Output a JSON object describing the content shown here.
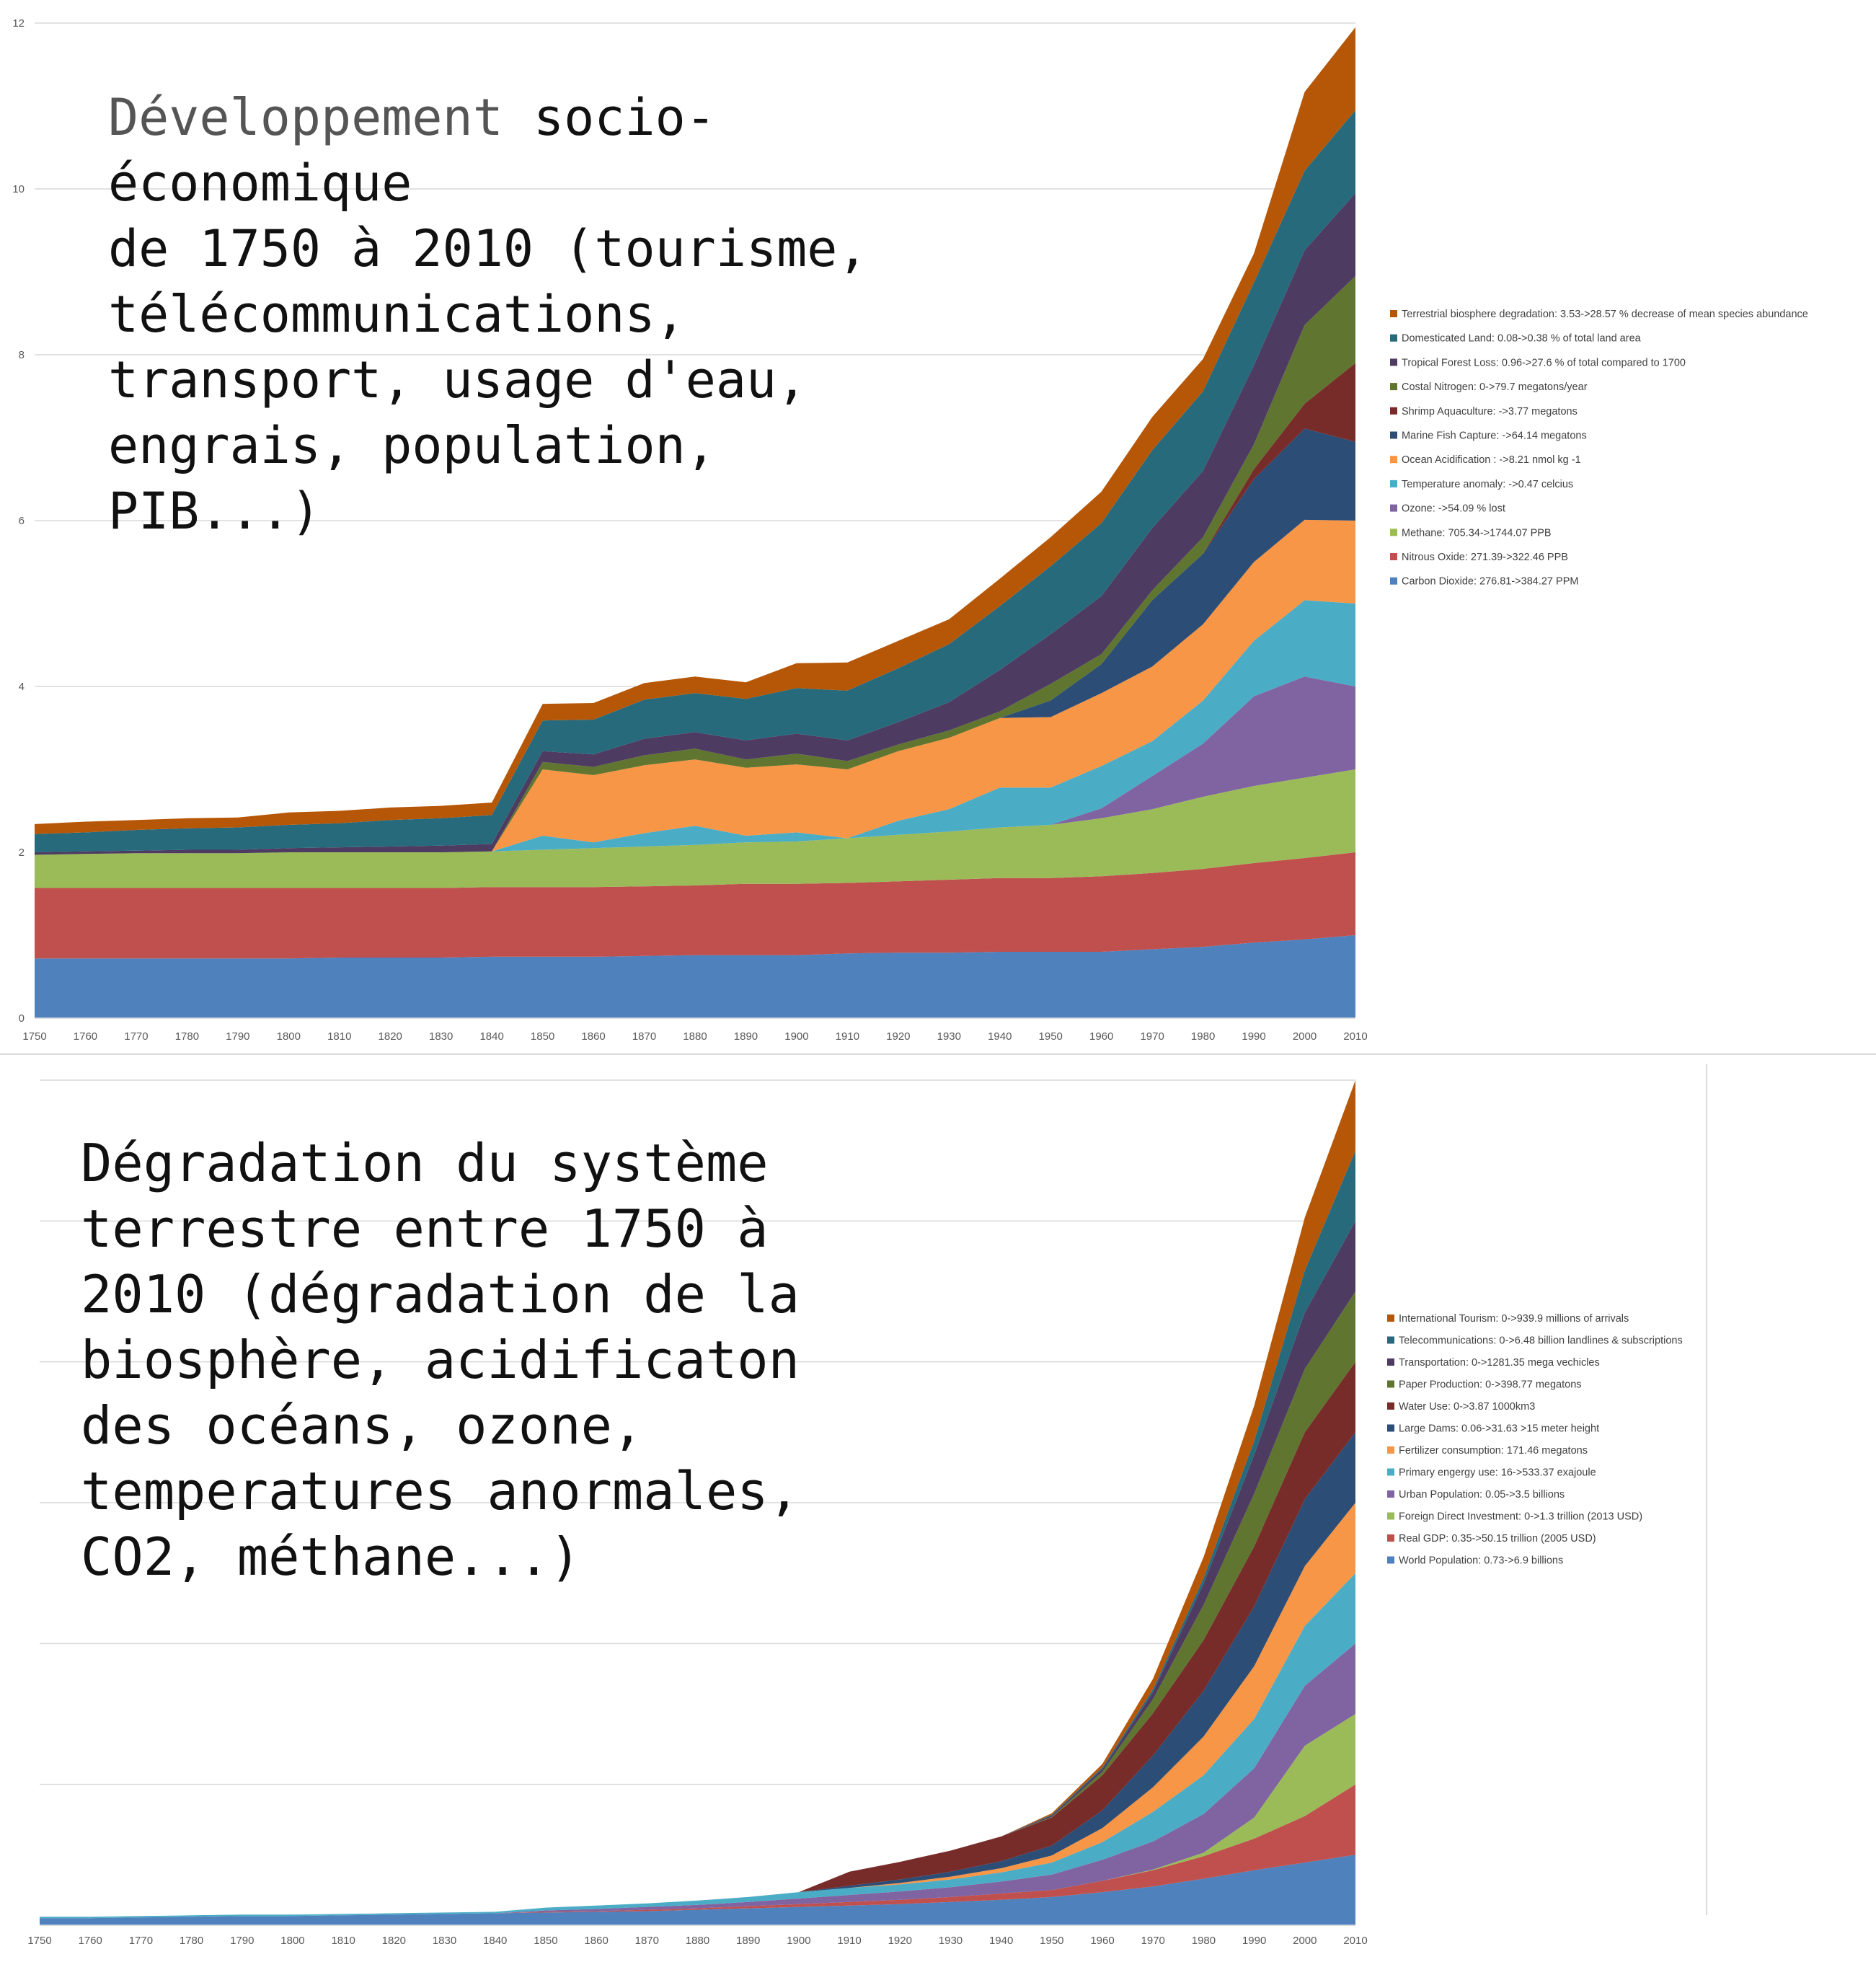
{
  "chart_data": [
    {
      "type": "area",
      "stacked": true,
      "title": "Développement socio-économique de 1750 à 2010 (tourisme, télécommunications, transport, usage d'eau, engrais, population, PIB...)",
      "title_lines": [
        "socio-",
        "économique",
        "de 1750 à 2010 (tourisme,",
        "télécommunications,",
        "transport, usage d'eau,",
        "engrais, population,",
        "PIB...)"
      ],
      "title_first_word": "Développement",
      "xlabel": "",
      "ylabel": "",
      "ylim": [
        0,
        12
      ],
      "y_ticks": [
        "0",
        "2",
        "4",
        "6",
        "8",
        "10",
        "12"
      ],
      "grid": true,
      "legend_position": "right",
      "x": [
        "1750",
        "1760",
        "1770",
        "1780",
        "1790",
        "1800",
        "1810",
        "1820",
        "1830",
        "1840",
        "1850",
        "1860",
        "1870",
        "1880",
        "1890",
        "1900",
        "1910",
        "1920",
        "1930",
        "1940",
        "1950",
        "1960",
        "1970",
        "1980",
        "1990",
        "2000",
        "2010"
      ],
      "series": [
        {
          "name": "Carbon Dioxide: 276.81->384.27 PPM",
          "color": "#4f81bd",
          "values": [
            0.72,
            0.72,
            0.72,
            0.72,
            0.72,
            0.72,
            0.73,
            0.73,
            0.73,
            0.74,
            0.74,
            0.74,
            0.75,
            0.76,
            0.76,
            0.76,
            0.78,
            0.79,
            0.79,
            0.8,
            0.8,
            0.8,
            0.83,
            0.86,
            0.91,
            0.95,
            1.0
          ]
        },
        {
          "name": "Nitrous Oxide: 271.39->322.46 PPB",
          "color": "#c0504d",
          "values": [
            0.85,
            0.85,
            0.85,
            0.85,
            0.85,
            0.85,
            0.84,
            0.84,
            0.84,
            0.84,
            0.84,
            0.84,
            0.84,
            0.84,
            0.86,
            0.86,
            0.85,
            0.86,
            0.88,
            0.89,
            0.89,
            0.91,
            0.92,
            0.94,
            0.96,
            0.98,
            1.0
          ]
        },
        {
          "name": "Methane: 705.34->1744.07 PPB",
          "color": "#9bbb59",
          "values": [
            0.4,
            0.41,
            0.42,
            0.42,
            0.42,
            0.43,
            0.43,
            0.43,
            0.43,
            0.43,
            0.45,
            0.47,
            0.48,
            0.49,
            0.5,
            0.51,
            0.54,
            0.56,
            0.58,
            0.61,
            0.64,
            0.7,
            0.77,
            0.87,
            0.93,
            0.97,
            1.0
          ]
        },
        {
          "name": "Ozone: ->54.09 % lost",
          "color": "#8064a2",
          "values": [
            0,
            0,
            0,
            0,
            0,
            0,
            0,
            0,
            0,
            0,
            0,
            0,
            0,
            0,
            0,
            0,
            0,
            0,
            0,
            0,
            0,
            0.12,
            0.4,
            0.64,
            1.08,
            1.22,
            1.0
          ]
        },
        {
          "name": "Temperature anomaly: ->0.47 celcius",
          "color": "#4bacc6",
          "values": [
            0,
            0,
            0,
            0,
            0,
            0,
            0,
            0,
            0,
            0,
            0.17,
            0.07,
            0.16,
            0.23,
            0.08,
            0.11,
            0,
            0.17,
            0.27,
            0.48,
            0.45,
            0.51,
            0.42,
            0.52,
            0.67,
            0.92,
            1.0
          ]
        },
        {
          "name": "Ocean Acidification : ->8.21 nmol kg -1",
          "color": "#f79646",
          "values": [
            0,
            0,
            0,
            0,
            0,
            0,
            0,
            0,
            0,
            0,
            0.8,
            0.81,
            0.82,
            0.8,
            0.82,
            0.82,
            0.83,
            0.84,
            0.86,
            0.84,
            0.85,
            0.88,
            0.9,
            0.92,
            0.95,
            0.97,
            1.0
          ]
        },
        {
          "name": "Marine Fish Capture: ->64.14 megatons",
          "color": "#2c4d75",
          "values": [
            0,
            0,
            0,
            0,
            0,
            0,
            0,
            0,
            0,
            0,
            0,
            0,
            0,
            0,
            0,
            0,
            0,
            0,
            0,
            0,
            0.2,
            0.35,
            0.8,
            0.85,
            1.0,
            1.1,
            0.95
          ]
        },
        {
          "name": "Shrimp Aquaculture: ->3.77 megatons",
          "color": "#772c2a",
          "values": [
            0,
            0,
            0,
            0,
            0,
            0,
            0,
            0,
            0,
            0,
            0,
            0,
            0,
            0,
            0,
            0,
            0,
            0,
            0,
            0,
            0,
            0,
            0,
            0,
            0.12,
            0.3,
            0.95
          ]
        },
        {
          "name": "Costal Nitrogen: 0->79.7 megatons/year",
          "color": "#5f7530",
          "values": [
            0,
            0,
            0,
            0,
            0,
            0,
            0,
            0,
            0,
            0,
            0.09,
            0.1,
            0.12,
            0.13,
            0.1,
            0.13,
            0.1,
            0.08,
            0.09,
            0.08,
            0.2,
            0.12,
            0.12,
            0.2,
            0.3,
            0.95,
            1.05
          ]
        },
        {
          "name": "Tropical Forest Loss: 0.96->27.6 % of total compared to 1700",
          "color": "#4d3b62",
          "values": [
            0.03,
            0.03,
            0.03,
            0.04,
            0.04,
            0.05,
            0.06,
            0.07,
            0.08,
            0.09,
            0.13,
            0.15,
            0.2,
            0.2,
            0.23,
            0.24,
            0.25,
            0.27,
            0.34,
            0.5,
            0.6,
            0.7,
            0.75,
            0.8,
            0.95,
            0.9,
            1.0
          ]
        },
        {
          "name": "Domesticated Land: 0.08->0.38 % of total land area",
          "color": "#276a7c",
          "values": [
            0.22,
            0.23,
            0.25,
            0.26,
            0.27,
            0.28,
            0.29,
            0.32,
            0.33,
            0.35,
            0.37,
            0.42,
            0.47,
            0.47,
            0.5,
            0.55,
            0.6,
            0.65,
            0.7,
            0.77,
            0.82,
            0.88,
            0.94,
            0.96,
            1.0,
            0.96,
            1.0
          ]
        },
        {
          "name": "Terrestrial biosphere degradation: 3.53->28.57 % decrease of mean species abundance",
          "color": "#b65708",
          "values": [
            0.12,
            0.13,
            0.12,
            0.12,
            0.12,
            0.15,
            0.15,
            0.15,
            0.15,
            0.15,
            0.2,
            0.2,
            0.2,
            0.2,
            0.2,
            0.3,
            0.34,
            0.33,
            0.3,
            0.33,
            0.35,
            0.38,
            0.4,
            0.39,
            0.35,
            0.95,
            1.0
          ]
        }
      ]
    },
    {
      "type": "area",
      "stacked": true,
      "title": "Dégradation du système terrestre entre 1750 à 2010 (dégradation de la biosphère, acidificaton des océans, ozone, temperatures anormales, CO2, méthane...)",
      "title_lines": [
        "Dégradation du système",
        "terrestre entre 1750 à",
        "2010 (dégradation de la",
        "biosphère, acidificaton",
        "des océans, ozone,",
        "temperatures anormales,",
        "CO2, méthane...)"
      ],
      "xlabel": "",
      "ylabel": "",
      "ylim": [
        0,
        12
      ],
      "grid": true,
      "legend_position": "right",
      "x": [
        "1750",
        "1760",
        "1770",
        "1780",
        "1790",
        "1800",
        "1810",
        "1820",
        "1830",
        "1840",
        "1850",
        "1860",
        "1870",
        "1880",
        "1890",
        "1900",
        "1910",
        "1920",
        "1930",
        "1940",
        "1950",
        "1960",
        "1970",
        "1980",
        "1990",
        "2000",
        "2010"
      ],
      "series": [
        {
          "name": "World Population: 0.73->6.9 billions",
          "color": "#4f81bd",
          "values": [
            0.1,
            0.1,
            0.11,
            0.12,
            0.13,
            0.13,
            0.14,
            0.15,
            0.16,
            0.17,
            0.18,
            0.19,
            0.2,
            0.22,
            0.24,
            0.26,
            0.28,
            0.3,
            0.33,
            0.36,
            0.4,
            0.47,
            0.55,
            0.66,
            0.78,
            0.89,
            1.0
          ]
        },
        {
          "name": "Real GDP: 0.35->50.15 trillion (2005 USD)",
          "color": "#c0504d",
          "values": [
            0,
            0,
            0,
            0,
            0,
            0,
            0,
            0,
            0,
            0,
            0.01,
            0.01,
            0.02,
            0.02,
            0.03,
            0.04,
            0.05,
            0.06,
            0.07,
            0.09,
            0.1,
            0.16,
            0.23,
            0.32,
            0.45,
            0.66,
            1.0
          ]
        },
        {
          "name": "Foreign Direct Investment: 0->1.3 trillion (2013 USD)",
          "color": "#9bbb59",
          "values": [
            0,
            0,
            0,
            0,
            0,
            0,
            0,
            0,
            0,
            0,
            0,
            0,
            0,
            0,
            0,
            0,
            0,
            0,
            0,
            0,
            0,
            0,
            0.01,
            0.05,
            0.3,
            1.0,
            1.0
          ]
        },
        {
          "name": "Urban Population: 0.05->3.5 billions",
          "color": "#8064a2",
          "values": [
            0,
            0,
            0,
            0,
            0,
            0,
            0,
            0,
            0,
            0,
            0.02,
            0.03,
            0.04,
            0.05,
            0.06,
            0.08,
            0.1,
            0.12,
            0.14,
            0.17,
            0.22,
            0.3,
            0.4,
            0.55,
            0.7,
            0.85,
            1.0
          ]
        },
        {
          "name": "Primary engergy use: 16->533.37 exajoule",
          "color": "#4bacc6",
          "values": [
            0.02,
            0.02,
            0.02,
            0.02,
            0.02,
            0.02,
            0.02,
            0.02,
            0.02,
            0.02,
            0.04,
            0.05,
            0.05,
            0.06,
            0.07,
            0.09,
            0.1,
            0.1,
            0.11,
            0.13,
            0.17,
            0.25,
            0.42,
            0.55,
            0.7,
            0.85,
            1.0
          ]
        },
        {
          "name": "Fertilizer consumption: 171.46 megatons",
          "color": "#f79646",
          "values": [
            0,
            0,
            0,
            0,
            0,
            0,
            0,
            0,
            0,
            0,
            0,
            0,
            0,
            0,
            0,
            0,
            0,
            0.02,
            0.04,
            0.06,
            0.1,
            0.2,
            0.35,
            0.55,
            0.75,
            0.85,
            1.0
          ]
        },
        {
          "name": "Large Dams: 0.06->31.63 >15 meter height",
          "color": "#2c4d75",
          "values": [
            0,
            0,
            0,
            0,
            0,
            0,
            0,
            0,
            0,
            0,
            0,
            0,
            0,
            0,
            0,
            0,
            0.03,
            0.05,
            0.07,
            0.1,
            0.14,
            0.25,
            0.45,
            0.65,
            0.85,
            0.95,
            1.0
          ]
        },
        {
          "name": "Water Use: 0->3.87 1000km3",
          "color": "#772c2a",
          "values": [
            0,
            0,
            0,
            0,
            0,
            0,
            0,
            0,
            0,
            0,
            0,
            0,
            0,
            0,
            0,
            0,
            0.2,
            0.25,
            0.3,
            0.35,
            0.4,
            0.5,
            0.6,
            0.72,
            0.85,
            0.95,
            1.0
          ]
        },
        {
          "name": "Paper Production: 0->398.77 megatons",
          "color": "#5f7530",
          "values": [
            0,
            0,
            0,
            0,
            0,
            0,
            0,
            0,
            0,
            0,
            0,
            0,
            0,
            0,
            0,
            0,
            0,
            0,
            0,
            0,
            0.01,
            0.05,
            0.2,
            0.5,
            0.75,
            0.9,
            1.0
          ]
        },
        {
          "name": "Transportation: 0->1281.35 mega vechicles",
          "color": "#4d3b62",
          "values": [
            0,
            0,
            0,
            0,
            0,
            0,
            0,
            0,
            0,
            0,
            0,
            0,
            0,
            0,
            0,
            0,
            0,
            0,
            0,
            0,
            0.02,
            0.04,
            0.1,
            0.3,
            0.55,
            0.8,
            1.0
          ]
        },
        {
          "name": "Telecommunications: 0->6.48 billion landlines & subscriptions",
          "color": "#276a7c",
          "values": [
            0,
            0,
            0,
            0,
            0,
            0,
            0,
            0,
            0,
            0,
            0,
            0,
            0,
            0,
            0,
            0,
            0,
            0,
            0,
            0,
            0.01,
            0.02,
            0.04,
            0.08,
            0.2,
            0.6,
            1.0
          ]
        },
        {
          "name": "International Tourism: 0->939.9 millions of arrivals",
          "color": "#b65708",
          "values": [
            0,
            0,
            0,
            0,
            0,
            0,
            0,
            0,
            0,
            0,
            0,
            0,
            0,
            0,
            0,
            0,
            0,
            0,
            0,
            0,
            0.02,
            0.05,
            0.15,
            0.3,
            0.5,
            0.75,
            1.0
          ]
        }
      ]
    }
  ]
}
